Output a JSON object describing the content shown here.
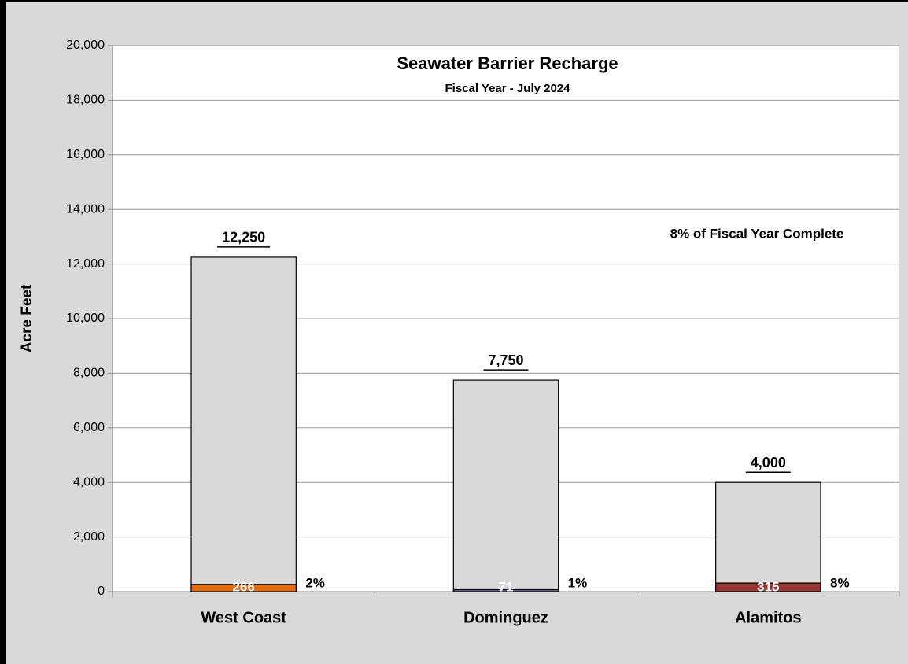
{
  "chart_data": {
    "type": "bar",
    "title": "Seawater Barrier Recharge",
    "subtitle": "Fiscal Year - July 2024",
    "y_label": "Acre Feet",
    "annotation": "8% of Fiscal Year Complete",
    "categories": [
      "West Coast",
      "Dominguez",
      "Alamitos"
    ],
    "targets": {
      "color": "#d9d9d9",
      "values": [
        12250,
        7750,
        4000
      ],
      "value_labels": [
        "12,250",
        "7,750",
        "4,000"
      ]
    },
    "actuals": {
      "colors": [
        "#e46c0a",
        "#8064a2",
        "#953735"
      ],
      "values": [
        266,
        71,
        315
      ]
    },
    "percent_labels": [
      "2%",
      "1%",
      "8%"
    ],
    "ylim": [
      0,
      20000
    ],
    "yticks": [
      {
        "value": 0,
        "label": "0"
      },
      {
        "value": 2000,
        "label": "2,000"
      },
      {
        "value": 4000,
        "label": "4,000"
      },
      {
        "value": 6000,
        "label": "6,000"
      },
      {
        "value": 8000,
        "label": "8,000"
      },
      {
        "value": 10000,
        "label": "10,000"
      },
      {
        "value": 12000,
        "label": "12,000"
      },
      {
        "value": 14000,
        "label": "14,000"
      },
      {
        "value": 16000,
        "label": "16,000"
      },
      {
        "value": 18000,
        "label": "18,000"
      },
      {
        "value": 20000,
        "label": "20,000"
      }
    ],
    "grid": true
  }
}
